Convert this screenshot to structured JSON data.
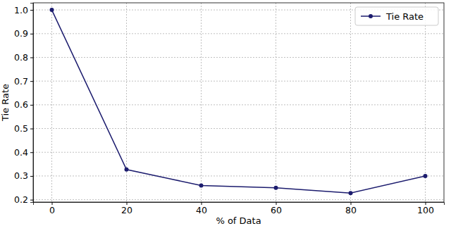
{
  "chart_data": {
    "type": "line",
    "x_label": "% of Data",
    "y_label": "Tie Rate",
    "x": [
      0,
      20,
      40,
      60,
      80,
      100
    ],
    "series": [
      {
        "name": "Tie Rate",
        "color": "#1c1c6e",
        "marker": "circle",
        "line_style": "solid",
        "values": [
          1.0,
          0.327,
          0.26,
          0.25,
          0.228,
          0.3
        ]
      }
    ],
    "xlim": [
      -5,
      105
    ],
    "xticks": [
      0,
      20,
      40,
      60,
      80,
      100
    ],
    "ylim": [
      0.19,
      1.03
    ],
    "yticks": [
      0.2,
      0.3,
      0.4,
      0.5,
      0.6,
      0.7,
      0.8,
      0.9,
      {
        "value": 1,
        "label": "1.0"
      }
    ],
    "grid": true,
    "legend": "upper right"
  }
}
